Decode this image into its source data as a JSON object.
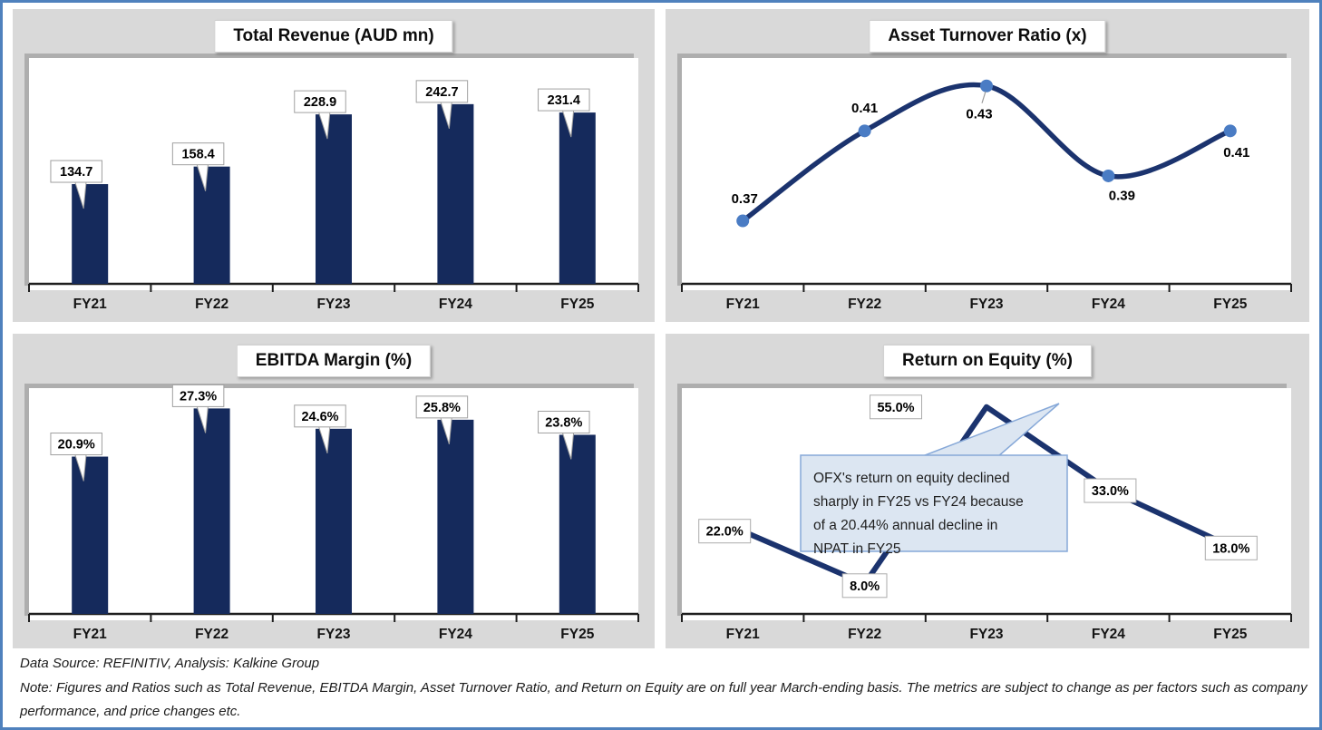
{
  "page": {
    "border_color": "#4f81bd",
    "panel_bg": "#d9d9d9",
    "navy_bar": "#152a5c",
    "navy_line": "#1b336e",
    "marker_blue": "#4a7cc4",
    "callout_fill": "#dce6f2",
    "callout_border": "#86a8d8"
  },
  "chart_data": [
    {
      "type": "bar",
      "title": "Total Revenue (AUD mn)",
      "categories": [
        "FY21",
        "FY22",
        "FY23",
        "FY24",
        "FY25"
      ],
      "values": [
        134.7,
        158.4,
        228.9,
        242.7,
        231.4
      ],
      "labels": [
        "134.7",
        "158.4",
        "228.9",
        "242.7",
        "231.4"
      ],
      "xlabel": "",
      "ylabel": "Total Revenue (AUD mn)",
      "ylim": [
        0,
        305
      ],
      "grid": false,
      "legend": "none"
    },
    {
      "type": "line",
      "title": "Asset Turnover Ratio (x)",
      "categories": [
        "FY21",
        "FY22",
        "FY23",
        "FY24",
        "FY25"
      ],
      "values": [
        0.37,
        0.41,
        0.43,
        0.39,
        0.41
      ],
      "labels": [
        "0.37",
        "0.41",
        "0.43",
        "0.39",
        "0.41"
      ],
      "xlabel": "",
      "ylabel": "Asset Turnover Ratio (x)",
      "ylim": [
        0.34,
        0.44
      ],
      "grid": false,
      "legend": "none",
      "smooth": true,
      "markers": true
    },
    {
      "type": "bar",
      "title": "EBITDA Margin (%)",
      "categories": [
        "FY21",
        "FY22",
        "FY23",
        "FY24",
        "FY25"
      ],
      "values": [
        20.9,
        27.3,
        24.6,
        25.8,
        23.8
      ],
      "labels": [
        "20.9%",
        "27.3%",
        "24.6%",
        "25.8%",
        "23.8%"
      ],
      "xlabel": "",
      "ylabel": "EBITDA Margin (%)",
      "ylim": [
        0,
        30
      ],
      "grid": false,
      "legend": "none"
    },
    {
      "type": "line",
      "title": "Return on Equity (%)",
      "categories": [
        "FY21",
        "FY22",
        "FY23",
        "FY24",
        "FY25"
      ],
      "values": [
        22.0,
        8.0,
        55.0,
        33.0,
        18.0
      ],
      "labels": [
        "22.0%",
        "8.0%",
        "55.0%",
        "33.0%",
        "18.0%"
      ],
      "xlabel": "",
      "ylabel": "Return on Equity (%)",
      "ylim": [
        0,
        60
      ],
      "grid": false,
      "legend": "none",
      "smooth": false,
      "markers": false,
      "callout": {
        "lines": [
          "OFX's return on equity declined",
          "sharply in FY25 vs FY24 because",
          "of a 20.44% annual decline in",
          "NPAT in FY25"
        ]
      }
    }
  ],
  "footer": {
    "source_line": "Data Source: REFINITIV, Analysis: Kalkine Group",
    "note_line": "Note: Figures and Ratios such as Total Revenue, EBITDA Margin, Asset Turnover Ratio, and Return on Equity are on full year March-ending basis. The metrics are subject to change as per factors such as company performance, and price changes etc."
  }
}
